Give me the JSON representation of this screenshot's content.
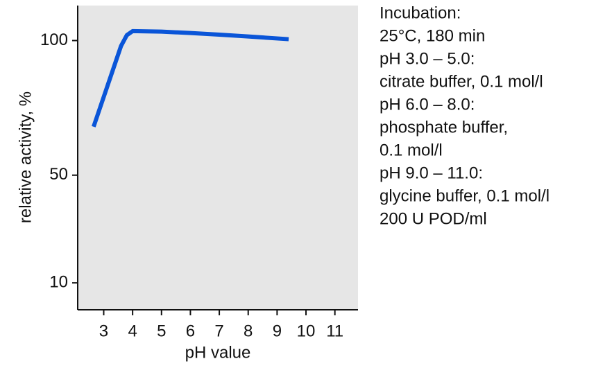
{
  "chart_data": {
    "type": "line",
    "x_label": "pH value",
    "y_label": "relative activity, %",
    "x": [
      2.65,
      3.6,
      3.8,
      4.0,
      5,
      6,
      7,
      8,
      9.4
    ],
    "series": [
      {
        "color": "#0a55d8",
        "values": [
          68,
          98,
          102,
          103.5,
          103.3,
          102.8,
          102.2,
          101.5,
          100.5
        ]
      }
    ],
    "xlim": [
      2.1,
      11.8
    ],
    "xticks": [
      3,
      4,
      5,
      6,
      7,
      8,
      9,
      10,
      11
    ],
    "ylim": [
      0,
      113
    ],
    "yticks": [
      10,
      50,
      100
    ],
    "background": "#e6e6e6",
    "annotations": [
      "Incubation:",
      "25°C, 180 min",
      "pH 3.0 – 5.0:",
      "citrate buffer, 0.1 mol/l",
      "pH 6.0 – 8.0:",
      "phosphate buffer,",
      "0.1 mol/l",
      "pH 9.0 – 11.0:",
      "glycine buffer, 0.1 mol/l",
      "200 U POD/ml"
    ]
  }
}
